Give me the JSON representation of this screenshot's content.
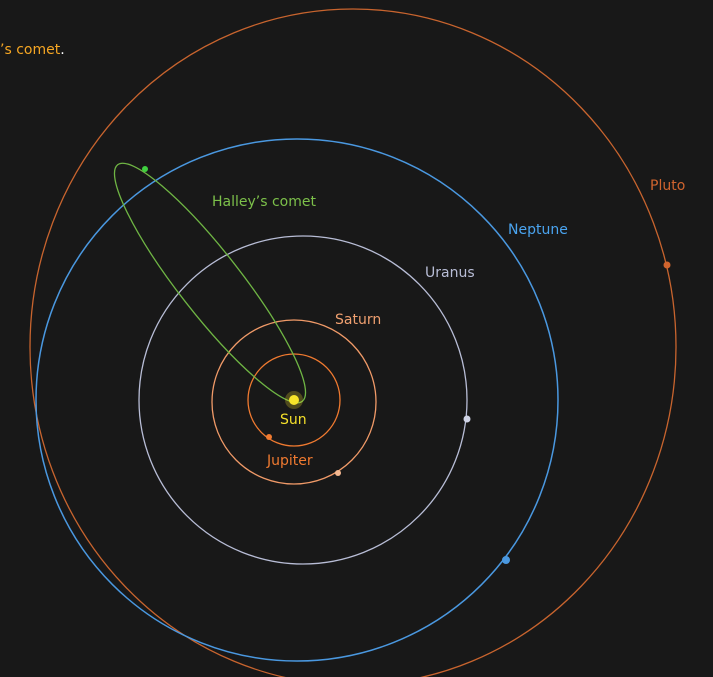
{
  "header": {
    "title": "’s comet",
    "punctuation": "."
  },
  "labels": {
    "halley": "Halley’s comet",
    "neptune": "Neptune",
    "uranus": "Uranus",
    "saturn": "Saturn",
    "sun": "Sun",
    "jupiter": "Jupiter",
    "pluto": "Pluto"
  }
}
